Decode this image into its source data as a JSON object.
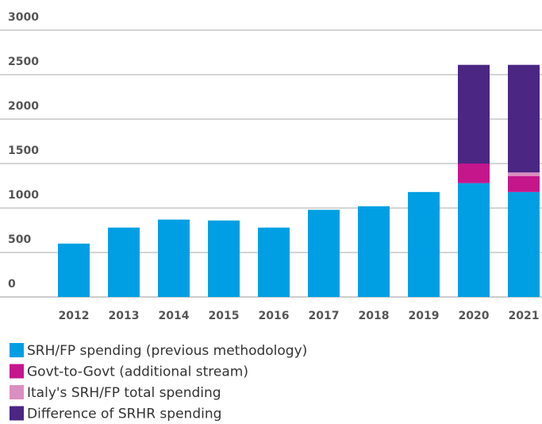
{
  "chart_data": {
    "type": "bar",
    "stacked": true,
    "categories": [
      "2012",
      "2013",
      "2014",
      "2015",
      "2016",
      "2017",
      "2018",
      "2019",
      "2020",
      "2021"
    ],
    "series": [
      {
        "name": "SRH/FP spending (previous methodology)",
        "color": "#009fe3",
        "values": [
          600,
          780,
          870,
          860,
          780,
          980,
          1020,
          1180,
          1280,
          1180
        ]
      },
      {
        "name": "Govt-to-Govt (additional stream)",
        "color": "#c5168c",
        "values": [
          null,
          null,
          null,
          null,
          null,
          null,
          null,
          null,
          220,
          180
        ]
      },
      {
        "name": "Italy's SRH/FP total spending",
        "color": "#d98fc0",
        "values": [
          null,
          null,
          null,
          null,
          null,
          null,
          null,
          null,
          null,
          40
        ]
      },
      {
        "name": "Difference of SRHR spending",
        "color": "#4b2683",
        "values": [
          null,
          null,
          null,
          null,
          null,
          null,
          null,
          null,
          1110,
          1210
        ]
      }
    ],
    "ylim": [
      0,
      3000
    ],
    "yticks": [
      0,
      500,
      1000,
      1500,
      2000,
      2500,
      3000
    ],
    "grid": true,
    "legend": "bottom"
  }
}
